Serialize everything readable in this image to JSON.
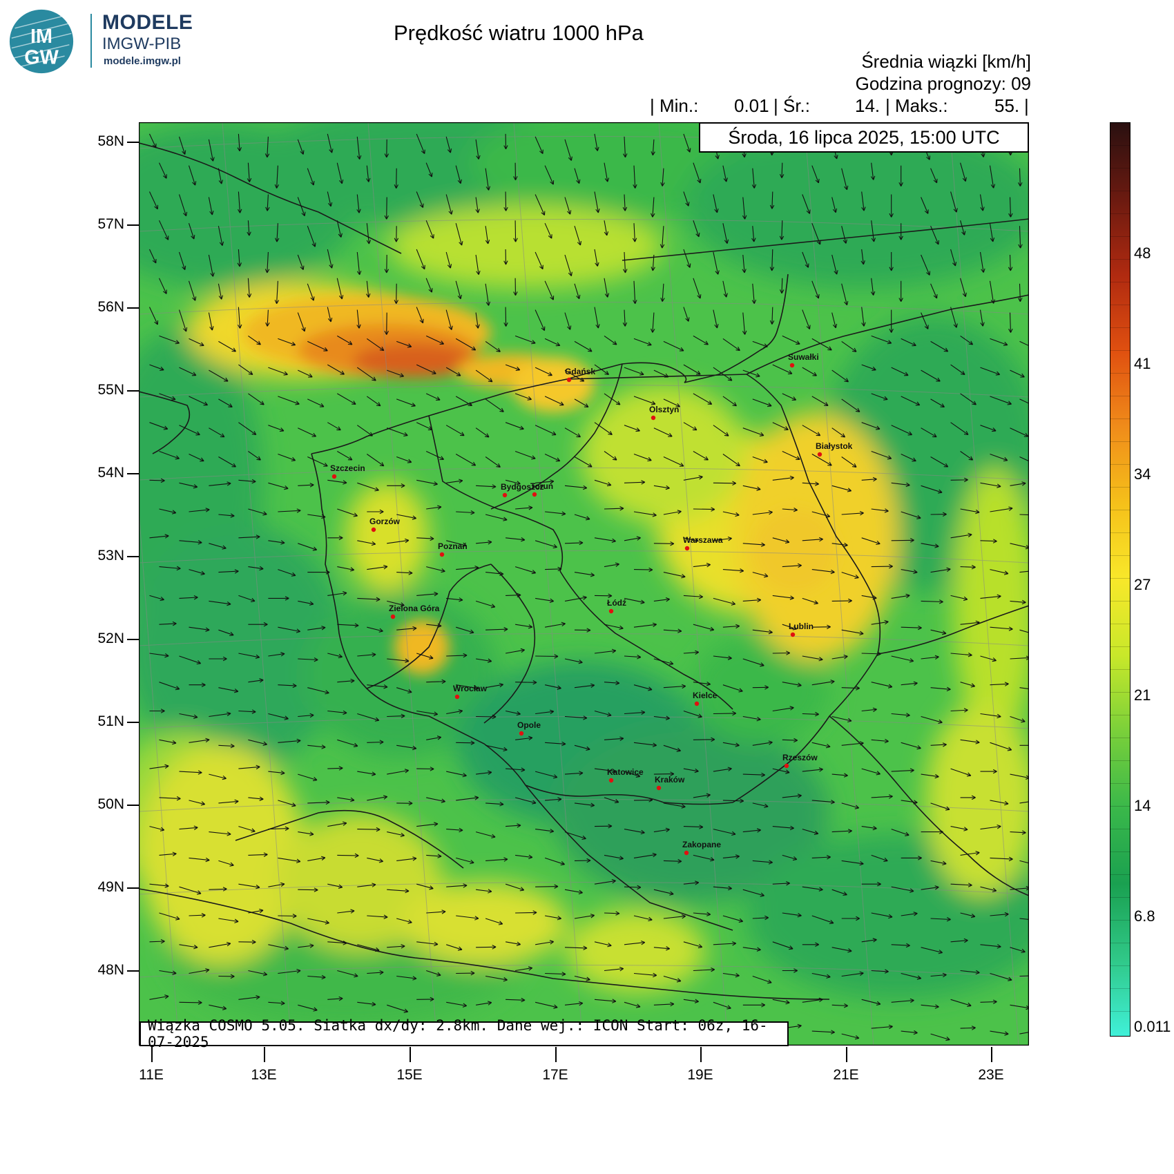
{
  "logo": {
    "badge_text": "IMGW",
    "title": "MODELE",
    "organization": "IMGW-PIB",
    "website": "modele.imgw.pl",
    "color": "#2a8aa0"
  },
  "header": {
    "title": "Prędkość wiatru 1000 hPa",
    "units_line": "Średnia wiązki [km/h]",
    "forecast_hour_line": "Godzina prognozy: 09",
    "stats": {
      "min_label": "| Min.:",
      "min_value": "0.01",
      "mean_label": "| Śr.:",
      "mean_value": "14.",
      "max_label": "| Maks.:",
      "max_value": "55.",
      "end": "|"
    },
    "valid_time": "Środa, 16 lipca 2025, 15:00 UTC"
  },
  "footer": {
    "text": "Wiązka COSMO 5.05. Siatka dx/dy: 2.8km. Dane wej.: ICON Start: 06z, 16-07-2025"
  },
  "axes": {
    "latitude_labels": [
      "58N",
      "57N",
      "56N",
      "55N",
      "54N",
      "53N",
      "52N",
      "51N",
      "50N",
      "49N",
      "48N"
    ],
    "longitude_labels": [
      "11E",
      "13E",
      "15E",
      "17E",
      "19E",
      "21E",
      "23E"
    ]
  },
  "colorbar": {
    "labels": [
      "48",
      "41",
      "34",
      "27",
      "21",
      "14",
      "6.8",
      "0.011"
    ],
    "colors": [
      "#2a1010",
      "#6b1a10",
      "#b02a10",
      "#e05010",
      "#f08c1a",
      "#f5c01a",
      "#f8e82a",
      "#c8e82a",
      "#7ad03a",
      "#3ab84a",
      "#1aa050",
      "#30c888",
      "#40f0d8"
    ]
  },
  "cities": [
    {
      "name": "Gdańsk"
    },
    {
      "name": "Suwałki"
    },
    {
      "name": "Olsztyn"
    },
    {
      "name": "Białystok"
    },
    {
      "name": "Szczecin"
    },
    {
      "name": "Bydgoszcz"
    },
    {
      "name": "Toruń"
    },
    {
      "name": "Gorzów"
    },
    {
      "name": "Poznań"
    },
    {
      "name": "Warszawa"
    },
    {
      "name": "Łódź"
    },
    {
      "name": "Zielona Góra"
    },
    {
      "name": "Lublin"
    },
    {
      "name": "Wrocław"
    },
    {
      "name": "Kielce"
    },
    {
      "name": "Opole"
    },
    {
      "name": "Rzeszów"
    },
    {
      "name": "Katowice"
    },
    {
      "name": "Kraków"
    },
    {
      "name": "Zakopane"
    }
  ]
}
